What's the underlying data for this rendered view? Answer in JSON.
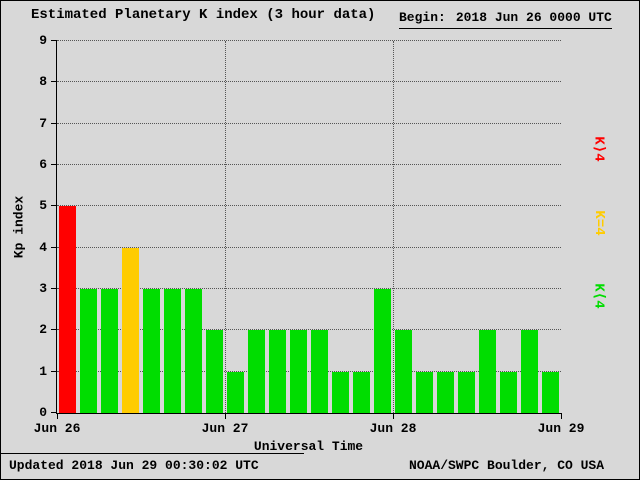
{
  "header": {
    "title": "Estimated Planetary K index (3 hour data)",
    "begin_label": "Begin:",
    "begin_value": "2018 Jun 26 0000 UTC"
  },
  "footer": {
    "updated": "Updated 2018 Jun 29 00:30:02 UTC",
    "source": "NOAA/SWPC Boulder, CO USA"
  },
  "chart_data": {
    "type": "bar",
    "title": "Estimated Planetary K index (3 hour data)",
    "xlabel": "Universal Time",
    "ylabel": "Kp index",
    "ylim": [
      0,
      9
    ],
    "y_ticks": [
      0,
      1,
      2,
      3,
      4,
      5,
      6,
      7,
      8,
      9
    ],
    "x_ticks": [
      "Jun 26",
      "Jun 27",
      "Jun 28",
      "Jun 29"
    ],
    "bar_interval_hours": 3,
    "begin": "2018 Jun 26 0000 UTC",
    "values": [
      5,
      3,
      3,
      4,
      3,
      3,
      3,
      2,
      1,
      2,
      2,
      2,
      2,
      1,
      1,
      3,
      2,
      1,
      1,
      1,
      2,
      1,
      2,
      1
    ],
    "colors": {
      "low": "#00dd00",
      "mid": "#ffcc00",
      "high": "#ff0000"
    },
    "legend": [
      {
        "label": "K⟩4",
        "color": "#ff0000"
      },
      {
        "label": "K=4",
        "color": "#ffcc00"
      },
      {
        "label": "K⟨4",
        "color": "#00dd00"
      }
    ],
    "grid": true,
    "legend_position": "right"
  }
}
